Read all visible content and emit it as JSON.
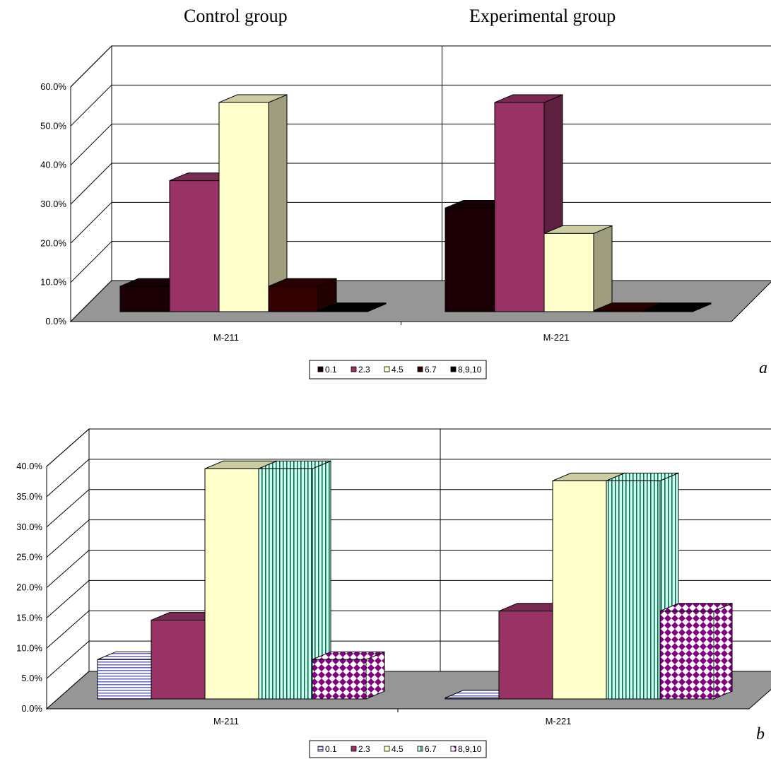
{
  "headings": {
    "left": "Control group",
    "right": "Experimental group"
  },
  "panel_letters": {
    "a": "a",
    "b": "b"
  },
  "chart_data": [
    {
      "type": "bar",
      "panel": "a",
      "categories": [
        "M-211",
        "M-221"
      ],
      "series": [
        {
          "name": "0.1",
          "values": [
            6.5,
            26.5
          ],
          "color": "#1a0005"
        },
        {
          "name": "2.3",
          "values": [
            33.5,
            53.5
          ],
          "color": "#993366"
        },
        {
          "name": "4.5",
          "values": [
            53.5,
            20.0
          ],
          "color": "#ffffcc"
        },
        {
          "name": "6.7",
          "values": [
            6.5,
            0
          ],
          "color": "#330000"
        },
        {
          "name": "8,9,10",
          "values": [
            0,
            0
          ],
          "color": "#000000"
        }
      ],
      "yticks": [
        "0.0%",
        "10.0%",
        "20.0%",
        "30.0%",
        "40.0%",
        "50.0%",
        "60.0%"
      ],
      "ylim": [
        0,
        60
      ],
      "legend": "bottom"
    },
    {
      "type": "bar",
      "panel": "b",
      "categories": [
        "M-211",
        "M-221"
      ],
      "series": [
        {
          "name": "0.1",
          "values": [
            6.5,
            0
          ],
          "color": "#ccccff"
        },
        {
          "name": "2.3",
          "values": [
            13.0,
            14.5
          ],
          "color": "#993366"
        },
        {
          "name": "4.5",
          "values": [
            38.0,
            36.0
          ],
          "color": "#ffffcc"
        },
        {
          "name": "6.7",
          "values": [
            38.0,
            36.0
          ],
          "color": "#ccffee"
        },
        {
          "name": "8,9,10",
          "values": [
            6.5,
            14.5
          ],
          "color": "#ffffff"
        }
      ],
      "yticks": [
        "0.0%",
        "5.0%",
        "10.0%",
        "15.0%",
        "20.0%",
        "25.0%",
        "30.0%",
        "35.0%",
        "40.0%"
      ],
      "ylim": [
        0,
        40
      ],
      "legend": "bottom"
    }
  ]
}
